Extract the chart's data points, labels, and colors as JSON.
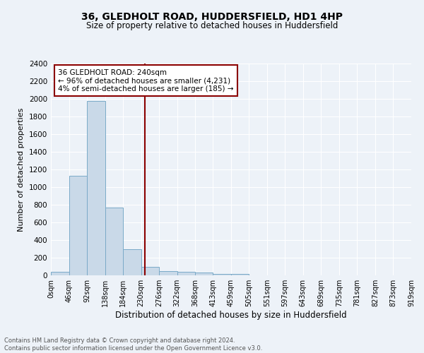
{
  "title": "36, GLEDHOLT ROAD, HUDDERSFIELD, HD1 4HP",
  "subtitle": "Size of property relative to detached houses in Huddersfield",
  "xlabel": "Distribution of detached houses by size in Huddersfield",
  "ylabel": "Number of detached properties",
  "bar_color": "#c9d9e8",
  "bar_edge_color": "#7aaac8",
  "background_color": "#edf2f8",
  "vline_x": 240,
  "vline_color": "#8b0000",
  "bin_edges": [
    0,
    46,
    92,
    138,
    184,
    230,
    276,
    322,
    368,
    413,
    459,
    505,
    551,
    597,
    643,
    689,
    735,
    781,
    827,
    873,
    919
  ],
  "bar_heights": [
    40,
    1130,
    1980,
    770,
    300,
    100,
    50,
    40,
    35,
    20,
    20,
    0,
    0,
    0,
    0,
    0,
    0,
    0,
    0,
    0
  ],
  "xlim": [
    0,
    919
  ],
  "ylim": [
    0,
    2400
  ],
  "yticks": [
    0,
    200,
    400,
    600,
    800,
    1000,
    1200,
    1400,
    1600,
    1800,
    2000,
    2200,
    2400
  ],
  "xtick_labels": [
    "0sqm",
    "46sqm",
    "92sqm",
    "138sqm",
    "184sqm",
    "230sqm",
    "276sqm",
    "322sqm",
    "368sqm",
    "413sqm",
    "459sqm",
    "505sqm",
    "551sqm",
    "597sqm",
    "643sqm",
    "689sqm",
    "735sqm",
    "781sqm",
    "827sqm",
    "873sqm",
    "919sqm"
  ],
  "annotation_text": "36 GLEDHOLT ROAD: 240sqm\n← 96% of detached houses are smaller (4,231)\n4% of semi-detached houses are larger (185) →",
  "footnote": "Contains HM Land Registry data © Crown copyright and database right 2024.\nContains public sector information licensed under the Open Government Licence v3.0.",
  "annotation_box_color": "white",
  "annotation_box_edge": "#8b0000",
  "title_fontsize": 10,
  "subtitle_fontsize": 8.5,
  "ylabel_fontsize": 8,
  "xlabel_fontsize": 8.5,
  "footnote_fontsize": 6
}
